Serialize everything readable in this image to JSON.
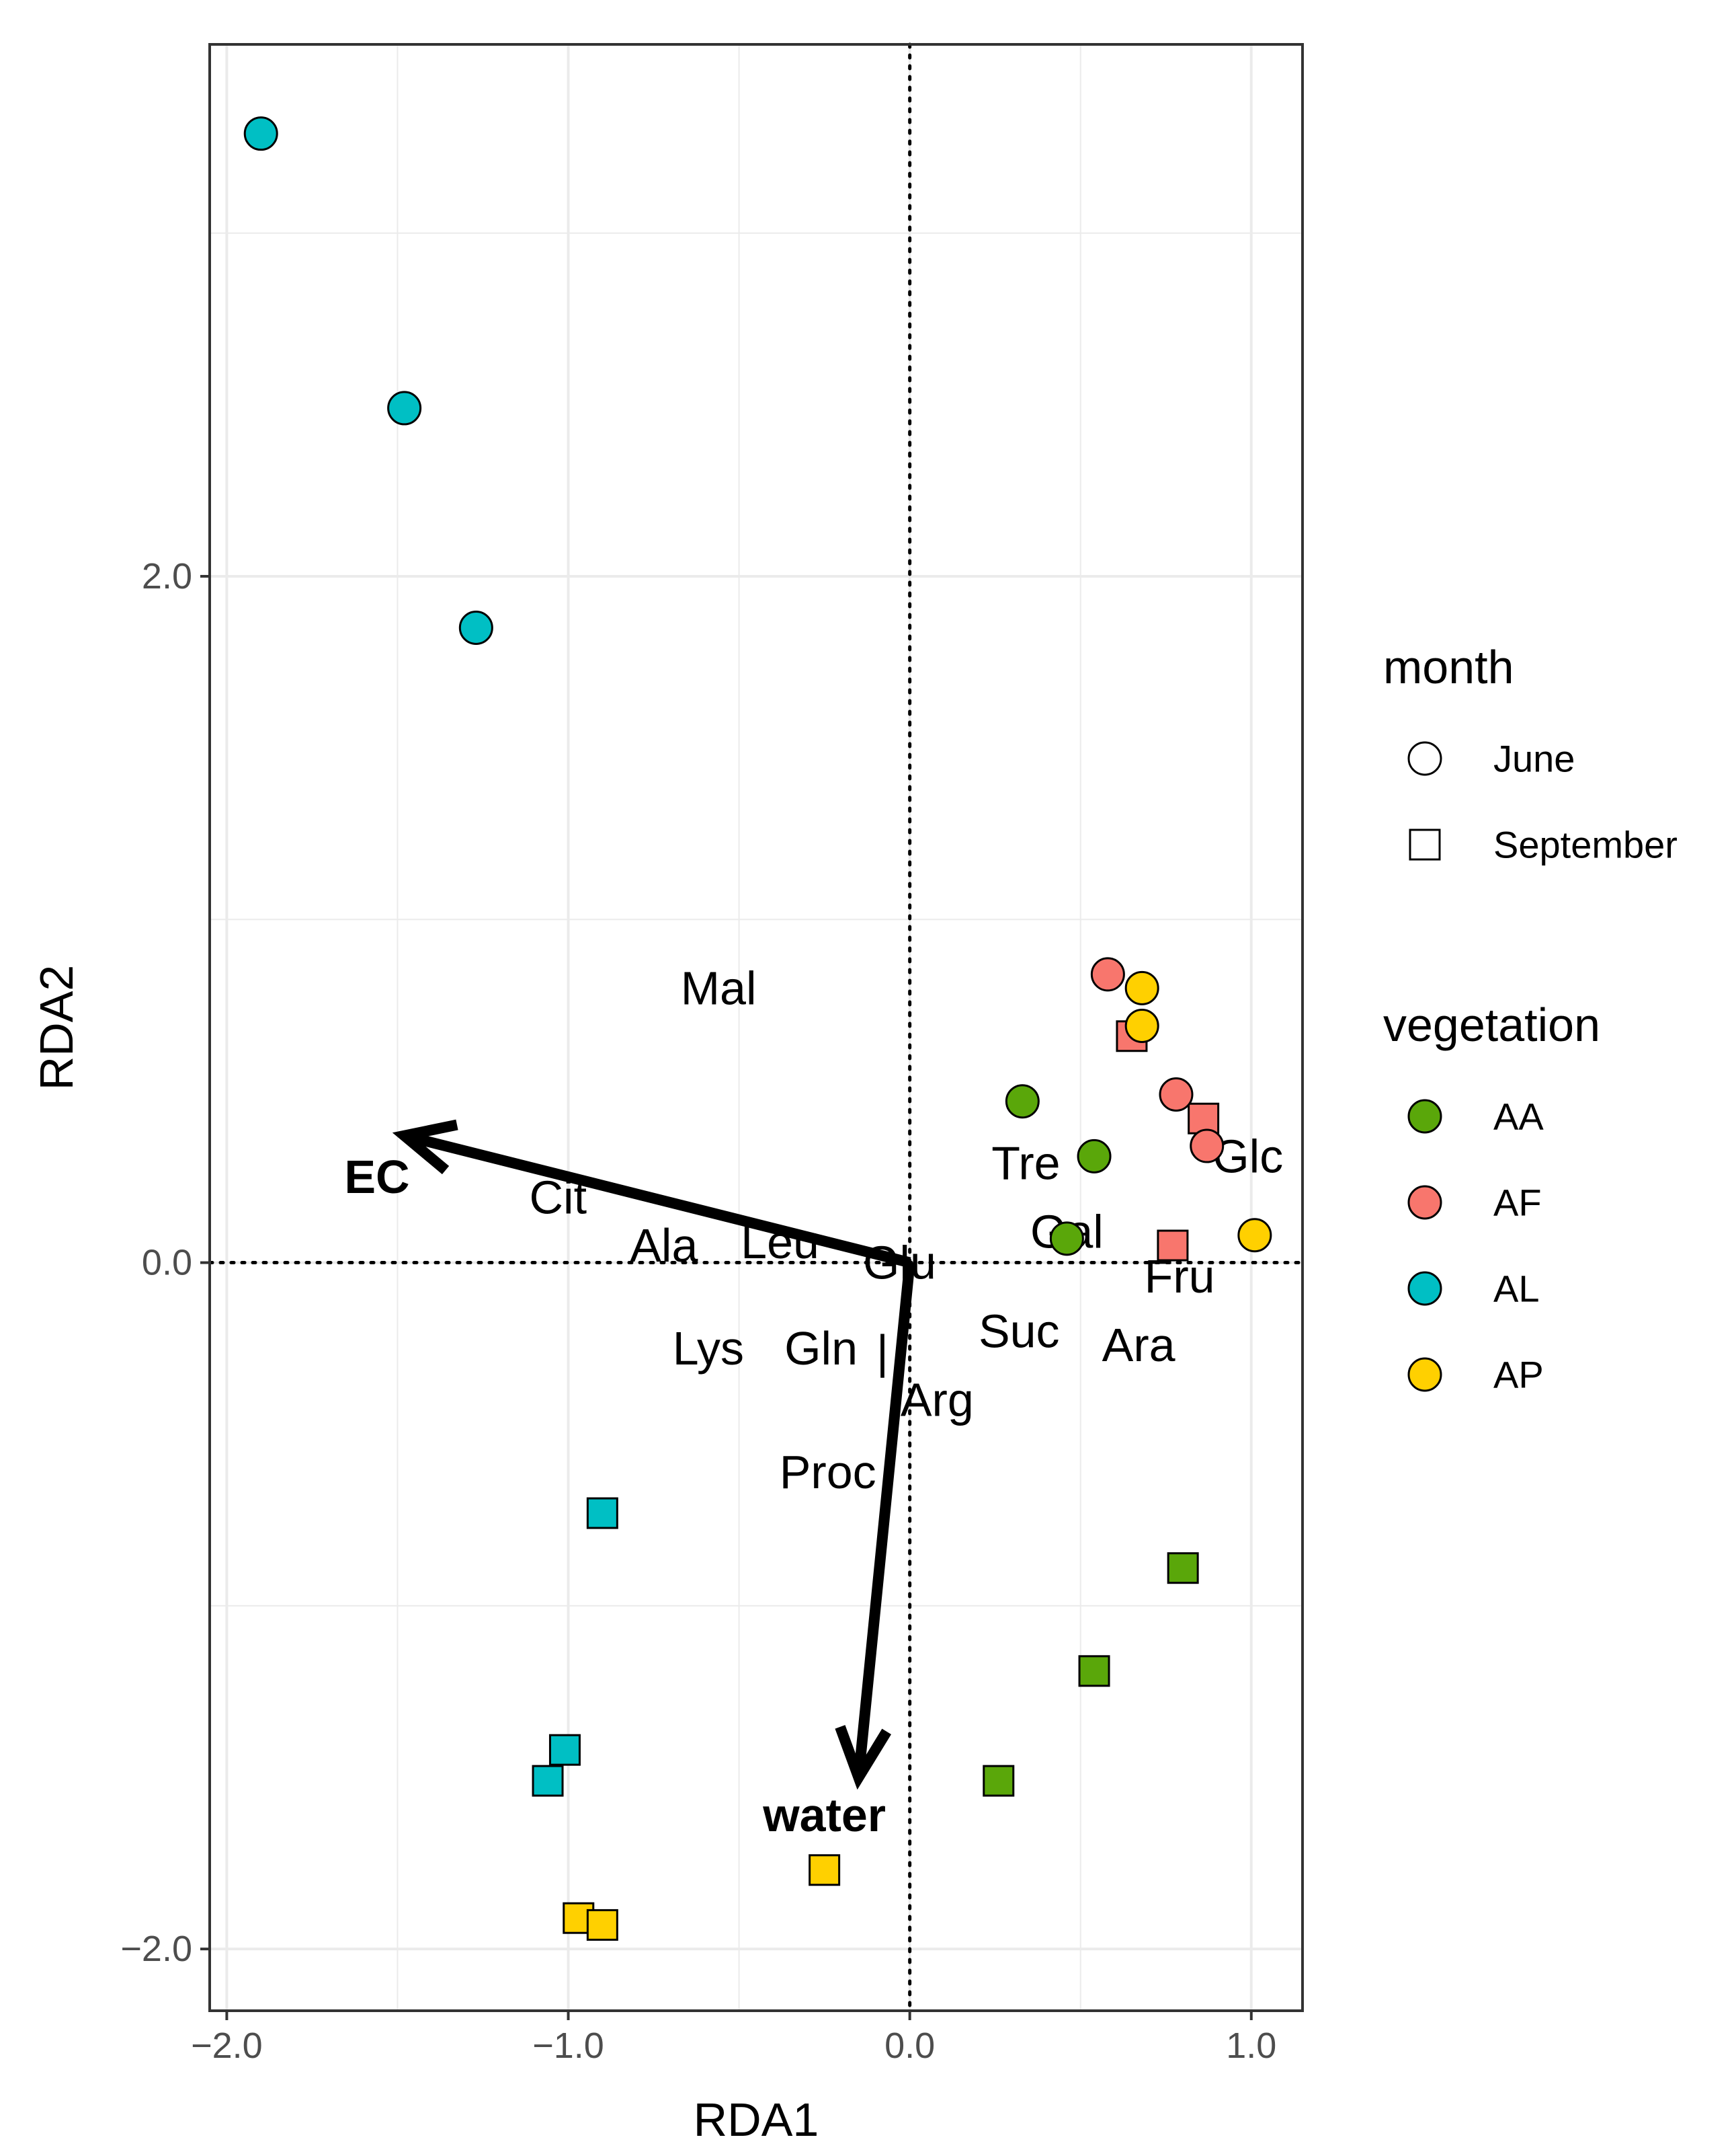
{
  "chart_data": {
    "type": "scatter",
    "subtype": "RDA biplot",
    "xlabel": "RDA1",
    "ylabel": "RDA2",
    "xlim": [
      -2.05,
      1.15
    ],
    "ylim": [
      -2.18,
      3.55
    ],
    "xticks": [
      -2.0,
      -1.0,
      0.0,
      1.0
    ],
    "yticks": [
      -2.0,
      0.0,
      2.0
    ],
    "xtick_labels": [
      "−2.0",
      "−1.0",
      "0.0",
      "1.0"
    ],
    "ytick_labels": [
      "−2.0",
      "0.0",
      "2.0"
    ],
    "grid": true,
    "reference_lines": {
      "x": 0,
      "y": 0,
      "style": "dotted"
    },
    "legend_position": "right",
    "legends": [
      {
        "title": "month",
        "entries": [
          {
            "label": "June",
            "shape": "circle"
          },
          {
            "label": "September",
            "shape": "square"
          }
        ]
      },
      {
        "title": "vegetation",
        "entries": [
          {
            "label": "AA",
            "color": "#5aa70a"
          },
          {
            "label": "AF",
            "color": "#f8766d"
          },
          {
            "label": "AL",
            "color": "#00bfc4"
          },
          {
            "label": "AP",
            "color": "#ffd000"
          }
        ]
      }
    ],
    "points": [
      {
        "x": -1.9,
        "y": 3.29,
        "vegetation": "AL",
        "month": "June"
      },
      {
        "x": -1.48,
        "y": 2.49,
        "vegetation": "AL",
        "month": "June"
      },
      {
        "x": -1.27,
        "y": 1.85,
        "vegetation": "AL",
        "month": "June"
      },
      {
        "x": -0.9,
        "y": -0.73,
        "vegetation": "AL",
        "month": "September"
      },
      {
        "x": -1.01,
        "y": -1.42,
        "vegetation": "AL",
        "month": "September"
      },
      {
        "x": -1.06,
        "y": -1.51,
        "vegetation": "AL",
        "month": "September"
      },
      {
        "x": 0.33,
        "y": 0.47,
        "vegetation": "AA",
        "month": "June"
      },
      {
        "x": 0.54,
        "y": 0.31,
        "vegetation": "AA",
        "month": "June"
      },
      {
        "x": 0.46,
        "y": 0.07,
        "vegetation": "AA",
        "month": "June"
      },
      {
        "x": 0.8,
        "y": -0.89,
        "vegetation": "AA",
        "month": "September"
      },
      {
        "x": 0.54,
        "y": -1.19,
        "vegetation": "AA",
        "month": "September"
      },
      {
        "x": 0.26,
        "y": -1.51,
        "vegetation": "AA",
        "month": "September"
      },
      {
        "x": 0.65,
        "y": 0.66,
        "vegetation": "AF",
        "month": "September"
      },
      {
        "x": 0.86,
        "y": 0.42,
        "vegetation": "AF",
        "month": "September"
      },
      {
        "x": 0.77,
        "y": 0.05,
        "vegetation": "AF",
        "month": "September"
      },
      {
        "x": 0.58,
        "y": 0.84,
        "vegetation": "AF",
        "month": "June"
      },
      {
        "x": 0.78,
        "y": 0.49,
        "vegetation": "AF",
        "month": "June"
      },
      {
        "x": 0.87,
        "y": 0.34,
        "vegetation": "AF",
        "month": "June"
      },
      {
        "x": 0.68,
        "y": 0.8,
        "vegetation": "AP",
        "month": "June"
      },
      {
        "x": 0.68,
        "y": 0.69,
        "vegetation": "AP",
        "month": "June"
      },
      {
        "x": 1.01,
        "y": 0.08,
        "vegetation": "AP",
        "month": "June"
      },
      {
        "x": -0.25,
        "y": -1.77,
        "vegetation": "AP",
        "month": "September"
      },
      {
        "x": -0.97,
        "y": -1.91,
        "vegetation": "AP",
        "month": "September"
      },
      {
        "x": -0.9,
        "y": -1.93,
        "vegetation": "AP",
        "month": "September"
      }
    ],
    "species_labels": [
      {
        "text": "Mal",
        "x": -0.56,
        "y": 0.8
      },
      {
        "text": "Tre",
        "x": 0.34,
        "y": 0.29
      },
      {
        "text": "Glc",
        "x": 0.99,
        "y": 0.31
      },
      {
        "text": "Cit",
        "x": -1.03,
        "y": 0.19
      },
      {
        "text": "Gal",
        "x": 0.46,
        "y": 0.09
      },
      {
        "text": "Ala",
        "x": -0.72,
        "y": 0.05
      },
      {
        "text": "Leu",
        "x": -0.38,
        "y": 0.06
      },
      {
        "text": "Glu",
        "x": -0.03,
        "y": 0.0
      },
      {
        "text": "Fru",
        "x": 0.79,
        "y": -0.04
      },
      {
        "text": "Suc",
        "x": 0.32,
        "y": -0.2
      },
      {
        "text": "Ara",
        "x": 0.67,
        "y": -0.24
      },
      {
        "text": "Lys",
        "x": -0.59,
        "y": -0.25
      },
      {
        "text": "Gln",
        "x": -0.26,
        "y": -0.25
      },
      {
        "text": "|",
        "x": -0.08,
        "y": -0.26
      },
      {
        "text": "Arg",
        "x": 0.08,
        "y": -0.4
      },
      {
        "text": "Proc",
        "x": -0.24,
        "y": -0.61
      }
    ],
    "env_vectors": [
      {
        "name": "EC",
        "x": -1.48,
        "y": 0.37,
        "label_x": -1.56,
        "label_y": 0.25
      },
      {
        "name": "water",
        "x": -0.15,
        "y": -1.5,
        "label_x": -0.25,
        "label_y": -1.61
      }
    ]
  }
}
